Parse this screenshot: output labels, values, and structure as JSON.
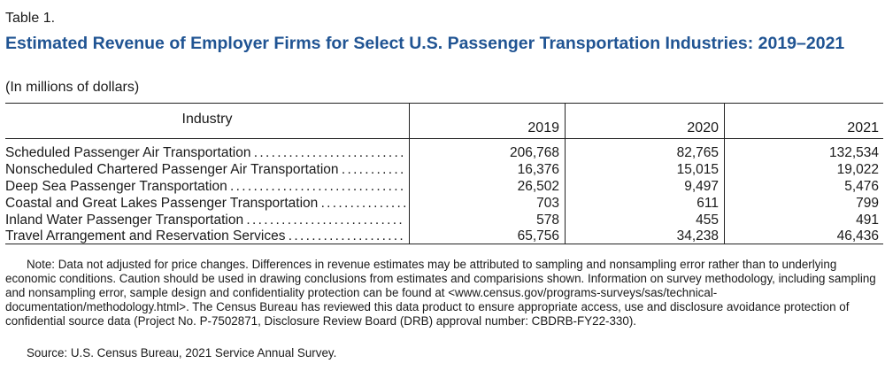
{
  "table_label": "Table 1.",
  "title": "Estimated Revenue of Employer Firms for Select U.S. Passenger Transportation Industries: 2019–2021",
  "units": "(In millions of dollars)",
  "columns": {
    "industry": "Industry",
    "years": [
      "2019",
      "2020",
      "2021"
    ]
  },
  "rows": [
    {
      "industry": "Scheduled Passenger Air Transportation",
      "values": [
        "206,768",
        "82,765",
        "132,534"
      ]
    },
    {
      "industry": "Nonscheduled Chartered Passenger Air Transportation",
      "values": [
        "16,376",
        "15,015",
        "19,022"
      ]
    },
    {
      "industry": "Deep Sea Passenger Transportation",
      "values": [
        "26,502",
        "9,497",
        "5,476"
      ]
    },
    {
      "industry": "Coastal and Great Lakes Passenger Transportation",
      "values": [
        "703",
        "611",
        "799"
      ]
    },
    {
      "industry": "Inland Water Passenger Transportation",
      "values": [
        "578",
        "455",
        "491"
      ]
    },
    {
      "industry": "Travel Arrangement and Reservation Services",
      "values": [
        "65,756",
        "34,238",
        "46,436"
      ]
    }
  ],
  "note": "Note: Data not adjusted for price changes. Differences in revenue estimates may be attributed to sampling and nonsampling error rather than to underlying economic conditions. Caution should be used in drawing conclusions from estimates and comparisions shown. Information on survey methodology, including sampling and nonsampling error, sample design and confidentiality protection can be found at <www.census.gov/programs-surveys/sas/technical-documentation/methodology.html>. The Census Bureau has reviewed this data product to ensure appropriate access, use and disclosure avoidance protection of confidential source data (Project No. P-7502871, Disclosure Review Board (DRB) approval number: CBDRB-FY22-330).",
  "source": "Source: U.S. Census Bureau, 2021 Service Annual Survey."
}
